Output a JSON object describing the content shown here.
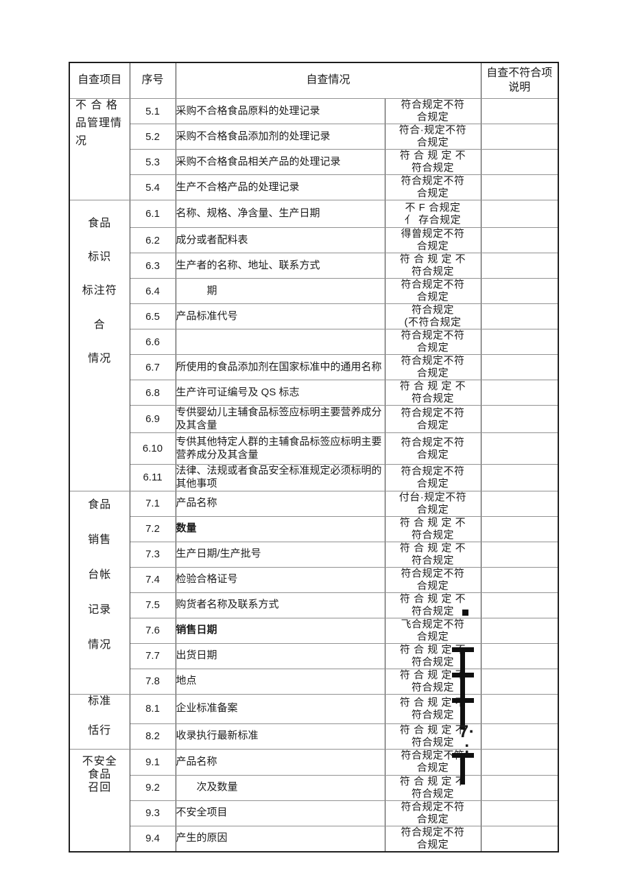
{
  "page": {
    "background": "#ffffff",
    "ink_color": "#1b1b1b"
  },
  "table": {
    "headers": {
      "item": "自查项目",
      "serial": "序号",
      "situation": "自查情况",
      "note": "自查不符合项说明"
    },
    "sections": [
      {
        "label_lines": [
          "不 合 格",
          "品管理情",
          "况"
        ],
        "rows": [
          {
            "no": "5.1",
            "desc": "采购不合格食品原料的处理记录",
            "status": "符合规定不符\n合规定"
          },
          {
            "no": "5.2",
            "desc": "采购不合格食品添加剂的处理记录",
            "status": "符合·规定不符\n合规定"
          },
          {
            "no": "5.3",
            "desc": "采购不合格食品相关产品的处理记录",
            "status": "符 合 规 定 不\n符合规定"
          },
          {
            "no": "5.4",
            "desc": "生产不合格产品的处理记录",
            "status": "符合规定不符\n合规定"
          }
        ]
      },
      {
        "label_lines": [
          "食品",
          "标识",
          "标注符",
          "合",
          "情况"
        ],
        "rows": [
          {
            "no": "6.1",
            "desc": "名称、规格、净含量、生产日期",
            "status": "不 F 合规定\n亻 存合规定"
          },
          {
            "no": "6.2",
            "desc": "成分或者配料表",
            "status": "得曾规定不符\n合规定"
          },
          {
            "no": "6.3",
            "desc": "生产者的名称、地址、联系方式",
            "status": "符 合 规 定 不\n符合规定"
          },
          {
            "no": "6.4",
            "desc": "　　　期",
            "status": "符合规定不符\n合规定"
          },
          {
            "no": "6.5",
            "desc": "产品标准代号",
            "status": "符合规定\n(不符合规定"
          },
          {
            "no": "6.6",
            "desc": "",
            "status": "符合规定不符\n合规定"
          },
          {
            "no": "6.7",
            "desc": "所使用的食品添加剂在国家标准中的通用名称",
            "status": "符合规定不符\n合规定"
          },
          {
            "no": "6.8",
            "desc": "生产许可证编号及 QS 标志",
            "status": "符 合 规 定 不\n符合规定"
          },
          {
            "no": "6.9",
            "desc": "专供婴幼儿主辅食品标签应标明主要营养成分及其含量",
            "status": "符合规定不符\n合规定"
          },
          {
            "no": "6.10",
            "desc": "专供其他特定人群的主辅食品标签应标明主要营养成分及其含量",
            "status": "符合规定不符\n合规定"
          },
          {
            "no": "6.11",
            "desc": "法律、法规或者食品安全标准规定必须标明的其他事项",
            "status": "符合规定不符\n合规定"
          }
        ]
      },
      {
        "label_lines": [
          "食品",
          "销售",
          "台帐",
          "记录",
          "情况"
        ],
        "rows": [
          {
            "no": "7.1",
            "desc": "产品名称",
            "status": "付台·规定不符\n合规定"
          },
          {
            "no": "7.2",
            "desc": "数量",
            "bold": true,
            "status": "符 合 规 定 不\n符合规定"
          },
          {
            "no": "7.3",
            "desc": "生产日期/生产批号",
            "status": "符 合 规 定 不\n符合规定"
          },
          {
            "no": "7.4",
            "desc": "检验合格证号",
            "status": "符合规定不符\n合规定"
          },
          {
            "no": "7.5",
            "desc": "购货者名称及联系方式",
            "status": "符 合 规 定 不\n符合规定",
            "artifact": "square"
          },
          {
            "no": "7.6",
            "desc": "销售日期",
            "bold": true,
            "status": "飞合规定不符\n合规定"
          },
          {
            "no": "7.7",
            "desc": "出货日期",
            "status": "符 合 规 定 不\n符合规定",
            "artifact": "t-mark"
          },
          {
            "no": "7.8",
            "desc": "地点",
            "status": "符 合 规 定 不\n符合规定",
            "artifact": "t-mark"
          }
        ]
      },
      {
        "label_lines": [
          "标准",
          "恬行"
        ],
        "rows": [
          {
            "no": "8.1",
            "desc": "企业标准备案",
            "status": "符 合 规 定 不\n符合规定",
            "artifact": "t-mark"
          },
          {
            "no": "8.2",
            "desc": "收录执行最新标准",
            "status": "符 合 规 定 不\n符合规定",
            "artifact": "seven-semicolon"
          }
        ]
      },
      {
        "label_lines": [
          "不安全",
          "食品",
          "召回"
        ],
        "rows": [
          {
            "no": "9.1",
            "desc": "产品名称",
            "status": "符合规定不符\n合规定",
            "artifact": "t-mark"
          },
          {
            "no": "9.2",
            "desc": "　　次及数量",
            "status": "符 合 规 定 不\n符合规定"
          },
          {
            "no": "9.3",
            "desc": "不安全项目",
            "status": "符合规定不符\n合规定"
          },
          {
            "no": "9.4",
            "desc": "产生的原因",
            "status": "符合规定不符\n合规定"
          }
        ]
      }
    ]
  },
  "artifacts": {
    "seven_semicolon_text": "7·\n;"
  }
}
